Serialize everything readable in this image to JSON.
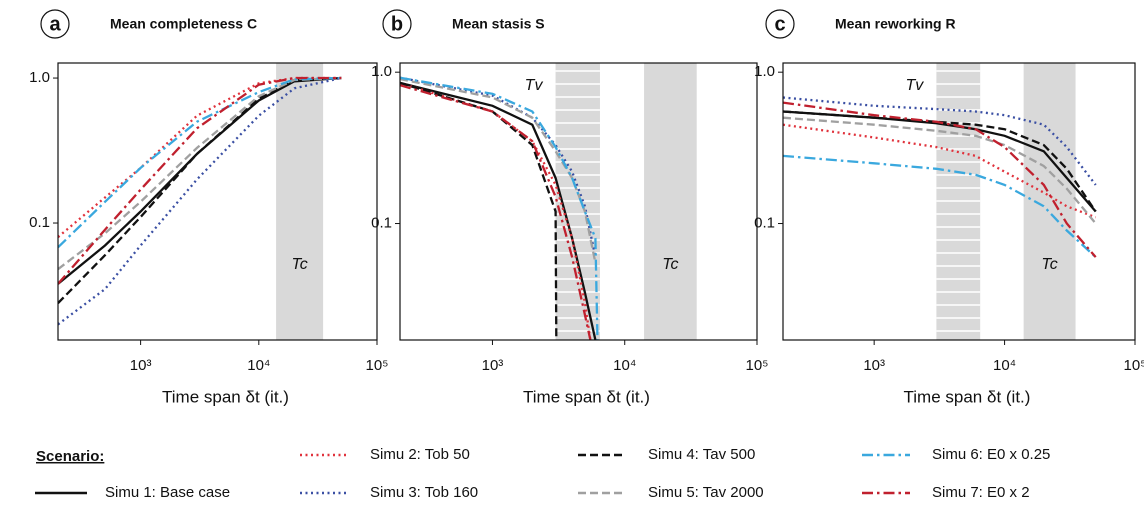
{
  "legend": {
    "title": "Scenario:",
    "entries": [
      {
        "name": "Simu 1: Base case",
        "color": "#111111",
        "style": "solid"
      },
      {
        "name": "Simu 2: Tob 50",
        "color": "#e0323c",
        "style": "dotted"
      },
      {
        "name": "Simu 3: Tob 160",
        "color": "#3a4fa3",
        "style": "dotted"
      },
      {
        "name": "Simu 4: Tav 500",
        "color": "#111111",
        "style": "dashed"
      },
      {
        "name": "Simu 5: Tav 2000",
        "color": "#a0a0a0",
        "style": "dashed"
      },
      {
        "name": "Simu 6: E0 x 0.25",
        "color": "#3aa8de",
        "style": "dashdot"
      },
      {
        "name": "Simu 7: E0 x 2",
        "color": "#c0202e",
        "style": "dashdot"
      }
    ]
  },
  "chart_data": [
    {
      "type": "line",
      "label": "a",
      "title": "Mean completeness C",
      "xlabel": "Time span δt  (it.)",
      "log": true,
      "xlim": [
        200,
        100000
      ],
      "ylim": [
        0.0156,
        1.27
      ],
      "xticks": [
        {
          "value": 1000,
          "label": "10³"
        },
        {
          "value": 10000,
          "label": "10⁴"
        },
        {
          "value": 100000,
          "label": "10⁵"
        }
      ],
      "yticks": [
        {
          "value": 1,
          "label": "1.0"
        },
        0.1
      ],
      "bands": [
        {
          "label": "Tc",
          "range": [
            14000,
            35000
          ]
        }
      ],
      "x": [
        200,
        500,
        1000,
        3000,
        10000,
        20000,
        50000
      ],
      "series": [
        {
          "values": [
            0.038,
            0.07,
            0.12,
            0.3,
            0.7,
            0.95,
            1.0
          ]
        },
        {
          "values": [
            0.08,
            0.15,
            0.24,
            0.55,
            0.92,
            1.0,
            1.0
          ]
        },
        {
          "values": [
            0.02,
            0.035,
            0.07,
            0.2,
            0.55,
            0.85,
            1.0
          ]
        },
        {
          "values": [
            0.028,
            0.06,
            0.11,
            0.3,
            0.72,
            0.97,
            1.0
          ]
        },
        {
          "values": [
            0.048,
            0.085,
            0.14,
            0.33,
            0.75,
            0.97,
            1.0
          ]
        },
        {
          "values": [
            0.068,
            0.14,
            0.24,
            0.5,
            0.8,
            0.98,
            1.0
          ]
        },
        {
          "values": [
            0.038,
            0.09,
            0.17,
            0.45,
            0.9,
            1.0,
            1.0
          ]
        }
      ]
    },
    {
      "type": "line",
      "label": "b",
      "title": "Mean stasis S",
      "xlabel": "Time span δt  (it.)",
      "log": true,
      "xlim": [
        200,
        100000
      ],
      "ylim": [
        0.017,
        1.15
      ],
      "xticks": [
        {
          "value": 1000,
          "label": "10³"
        },
        {
          "value": 10000,
          "label": "10⁴"
        },
        {
          "value": 100000,
          "label": "10⁵"
        }
      ],
      "yticks": [
        {
          "value": 1,
          "label": "1.0"
        },
        0.1
      ],
      "bands": [
        {
          "label": "Tc",
          "range": [
            14000,
            35000
          ]
        },
        {
          "label": "Tv",
          "range": [
            3000,
            6500
          ],
          "hatched": true
        }
      ],
      "series": [
        {
          "x": [
            200,
            1000,
            2000,
            3000,
            4000,
            5000,
            6000
          ],
          "values": [
            0.85,
            0.6,
            0.45,
            0.2,
            0.08,
            0.035,
            0.017
          ]
        },
        {
          "x": [
            200,
            1000,
            2000,
            3000,
            4000,
            5000,
            5500
          ],
          "values": [
            0.85,
            0.55,
            0.35,
            0.18,
            0.08,
            0.03,
            0.017
          ]
        },
        {
          "x": [
            200,
            1000,
            2000,
            3000,
            4000,
            5000,
            6000
          ],
          "values": [
            0.92,
            0.7,
            0.5,
            0.33,
            0.22,
            0.13,
            0.06
          ]
        },
        {
          "x": [
            200,
            1000,
            2000,
            3000,
            3050
          ],
          "values": [
            0.85,
            0.55,
            0.33,
            0.12,
            0.01
          ]
        },
        {
          "x": [
            200,
            1000,
            2000,
            3000,
            4000,
            5000,
            6000
          ],
          "values": [
            0.9,
            0.68,
            0.5,
            0.3,
            0.2,
            0.12,
            0.055
          ]
        },
        {
          "x": [
            200,
            1000,
            2000,
            3000,
            4000,
            5000,
            6000,
            6300
          ],
          "values": [
            0.92,
            0.72,
            0.55,
            0.32,
            0.2,
            0.12,
            0.08,
            0.01
          ]
        },
        {
          "x": [
            200,
            1000,
            2000,
            3000,
            4000,
            5000,
            5500
          ],
          "values": [
            0.82,
            0.55,
            0.35,
            0.15,
            0.06,
            0.025,
            0.017
          ]
        }
      ]
    },
    {
      "type": "line",
      "label": "c",
      "title": "Mean reworking R",
      "xlabel": "Time span δt  (it.)",
      "log": true,
      "xlim": [
        200,
        100000
      ],
      "ylim": [
        0.017,
        1.15
      ],
      "xticks": [
        {
          "value": 1000,
          "label": "10³"
        },
        {
          "value": 10000,
          "label": "10⁴"
        },
        {
          "value": 100000,
          "label": "10⁵"
        }
      ],
      "yticks": [
        {
          "value": 1,
          "label": "1.0"
        },
        0.1
      ],
      "bands": [
        {
          "label": "Tc",
          "range": [
            14000,
            35000
          ]
        },
        {
          "label": "Tv",
          "range": [
            3000,
            6500
          ],
          "hatched": true
        }
      ],
      "x": [
        200,
        1000,
        3000,
        6000,
        10000,
        20000,
        30000,
        50000
      ],
      "series": [
        {
          "values": [
            0.55,
            0.5,
            0.46,
            0.42,
            0.38,
            0.3,
            0.2,
            0.12
          ]
        },
        {
          "values": [
            0.45,
            0.37,
            0.32,
            0.28,
            0.22,
            0.16,
            0.13,
            0.11
          ]
        },
        {
          "values": [
            0.68,
            0.6,
            0.57,
            0.55,
            0.52,
            0.45,
            0.32,
            0.18
          ]
        },
        {
          "values": [
            0.55,
            0.5,
            0.47,
            0.45,
            0.42,
            0.33,
            0.23,
            0.12
          ]
        },
        {
          "values": [
            0.5,
            0.45,
            0.41,
            0.38,
            0.33,
            0.24,
            0.17,
            0.1
          ]
        },
        {
          "values": [
            0.28,
            0.25,
            0.23,
            0.21,
            0.18,
            0.13,
            0.09,
            0.06
          ]
        },
        {
          "values": [
            0.63,
            0.52,
            0.47,
            0.42,
            0.32,
            0.18,
            0.1,
            0.06
          ]
        }
      ]
    }
  ]
}
